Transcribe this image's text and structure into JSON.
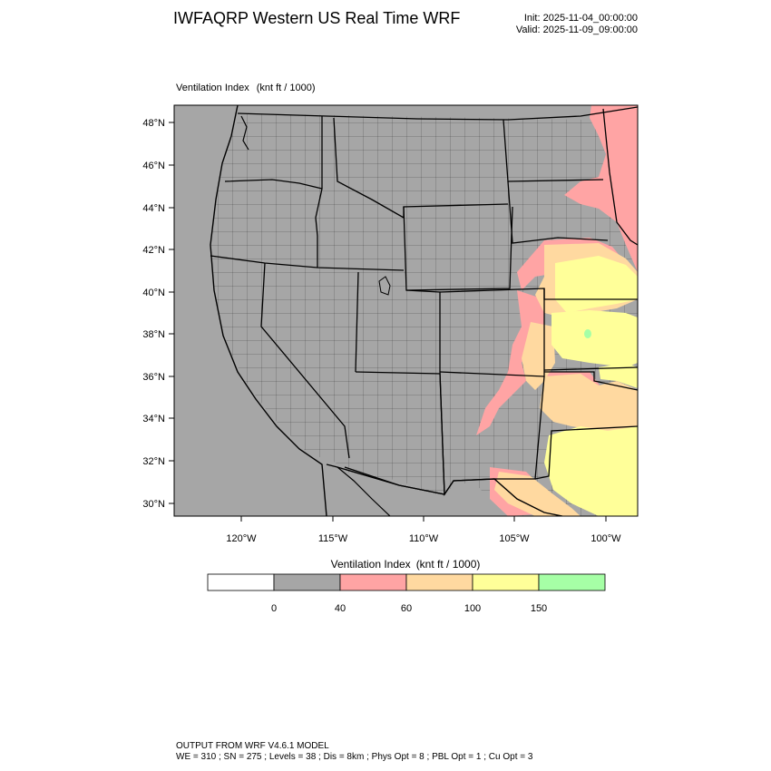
{
  "header": {
    "title": "IWFAQRP Western US Real Time WRF",
    "init": "Init: 2025-11-04_00:00:00",
    "valid": "Valid: 2025-11-09_09:00:00"
  },
  "plot": {
    "field_name": "Ventilation Index",
    "units": "(knt ft / 1000)"
  },
  "map": {
    "projection": "lambert-conformal",
    "lon_range": [
      -124,
      -98
    ],
    "lat_range": [
      29,
      49
    ],
    "lat_ticks": [
      "48°N",
      "46°N",
      "44°N",
      "42°N",
      "40°N",
      "38°N",
      "36°N",
      "34°N",
      "32°N",
      "30°N"
    ],
    "lon_ticks": [
      "120°W",
      "115°W",
      "110°W",
      "105°W",
      "100°W"
    ],
    "boundaries": [
      "state",
      "county",
      "coastline"
    ]
  },
  "legend": {
    "title": "Ventilation Index",
    "units": "(knt ft / 1000)",
    "bins": [
      {
        "range": "< 0",
        "color": "#ffffff"
      },
      {
        "range": "0–40",
        "color": "#a6a6a6"
      },
      {
        "range": "40–60",
        "color": "#ffa4a4"
      },
      {
        "range": "60–100",
        "color": "#ffd9a0"
      },
      {
        "range": "100–150",
        "color": "#ffff99"
      },
      {
        "range": "> 150",
        "color": "#a6ffa6"
      }
    ],
    "tick_labels": [
      "0",
      "40",
      "60",
      "100",
      "150"
    ]
  },
  "footer": {
    "line1": "OUTPUT FROM WRF V4.6.1 MODEL",
    "line2": "WE = 310 ; SN = 275 ; Levels = 38 ; Dis = 8km ; Phys Opt = 8 ; PBL Opt = 1 ; Cu Opt = 3"
  }
}
